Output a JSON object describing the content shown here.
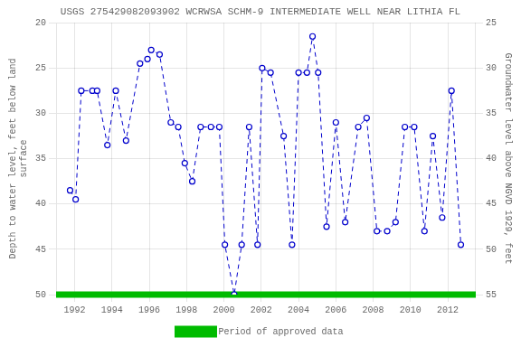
{
  "chart_data": {
    "type": "line",
    "title": "USGS 275429082093902 WCRWSA SCHM-9 INTERMEDIATE WELL NEAR LITHIA FL",
    "ylabel": "Depth to water level, feet below land\nsurface",
    "y2label": "Groundwater level above NGVD 1929, feet",
    "xlim": [
      1991.0,
      2013.5
    ],
    "xticks": [
      1992,
      1994,
      1996,
      1998,
      2000,
      2002,
      2004,
      2006,
      2008,
      2010,
      2012
    ],
    "ylim": [
      50,
      20
    ],
    "yticks": [
      20,
      25,
      30,
      35,
      40,
      45,
      50
    ],
    "y2lim": [
      55,
      25
    ],
    "y2ticks": [
      55,
      50,
      45,
      40,
      35,
      30,
      25
    ],
    "grid": true,
    "legend": "bottom",
    "series": [
      {
        "color": "#0000cc",
        "line_style": "dashed",
        "marker": "circle",
        "x": [
          1991.75,
          1992.05,
          1992.35,
          1992.95,
          1993.2,
          1993.75,
          1994.2,
          1994.75,
          1995.5,
          1995.9,
          1996.1,
          1996.55,
          1997.15,
          1997.55,
          1997.9,
          1998.3,
          1998.75,
          1999.3,
          1999.75,
          2000.05,
          2000.55,
          2000.95,
          2001.35,
          2001.8,
          2002.05,
          2002.5,
          2003.2,
          2003.65,
          2004.0,
          2004.45,
          2004.75,
          2005.05,
          2005.5,
          2006.0,
          2006.5,
          2007.2,
          2007.65,
          2008.2,
          2008.75,
          2009.2,
          2009.7,
          2010.2,
          2010.75,
          2011.2,
          2011.7,
          2012.2,
          2012.7
        ],
        "values": [
          38.5,
          39.5,
          27.5,
          27.5,
          27.5,
          33.5,
          27.5,
          33.0,
          24.5,
          24.0,
          23.0,
          23.5,
          31.0,
          31.5,
          35.5,
          37.5,
          31.5,
          31.5,
          31.5,
          44.5,
          50.0,
          44.5,
          31.5,
          44.5,
          25.0,
          25.5,
          32.5,
          44.5,
          25.5,
          25.5,
          21.5,
          25.5,
          42.5,
          31.0,
          42.0,
          31.5,
          30.5,
          43.0,
          43.0,
          42.0,
          31.5,
          31.5,
          43.0,
          32.5,
          41.5,
          27.5,
          44.5
        ]
      },
      {
        "name": "Period of approved data",
        "color": "#00bb00",
        "line_style": "solid",
        "marker": "none",
        "x": [
          1991.0,
          2013.5
        ],
        "values": [
          50,
          50
        ]
      }
    ]
  }
}
